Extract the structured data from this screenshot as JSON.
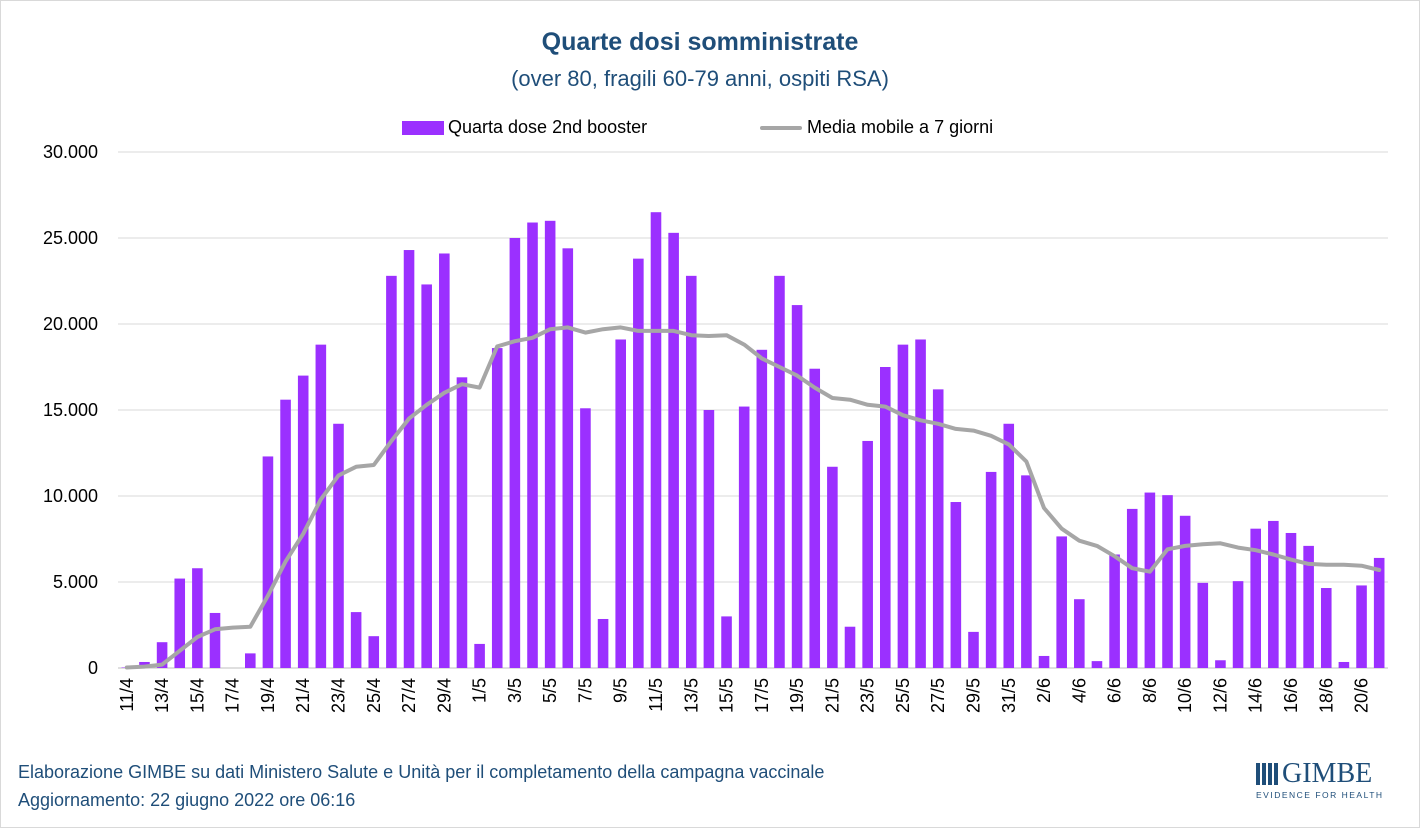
{
  "chart_data": {
    "type": "bar",
    "title": "Quarte dosi somministrate",
    "subtitle": "(over 80, fragili 60-79 anni, ospiti RSA)",
    "xlabel": "",
    "ylabel": "",
    "ylim": [
      0,
      30000
    ],
    "yticks": [
      {
        "value": 0,
        "label": "0"
      },
      {
        "value": 5000,
        "label": "5.000"
      },
      {
        "value": 10000,
        "label": "10.000"
      },
      {
        "value": 15000,
        "label": "15.000"
      },
      {
        "value": 20000,
        "label": "20.000"
      },
      {
        "value": 25000,
        "label": "25.000"
      },
      {
        "value": 30000,
        "label": "30.000"
      }
    ],
    "grid": true,
    "legend_position": "top-center",
    "categories": [
      "11/4",
      "12/4",
      "13/4",
      "14/4",
      "15/4",
      "16/4",
      "17/4",
      "18/4",
      "19/4",
      "20/4",
      "21/4",
      "22/4",
      "23/4",
      "24/4",
      "25/4",
      "26/4",
      "27/4",
      "28/4",
      "29/4",
      "30/4",
      "1/5",
      "2/5",
      "3/5",
      "4/5",
      "5/5",
      "6/5",
      "7/5",
      "8/5",
      "9/5",
      "10/5",
      "11/5",
      "12/5",
      "13/5",
      "14/5",
      "15/5",
      "16/5",
      "17/5",
      "18/5",
      "19/5",
      "20/5",
      "21/5",
      "22/5",
      "23/5",
      "24/5",
      "25/5",
      "26/5",
      "27/5",
      "28/5",
      "29/5",
      "30/5",
      "31/5",
      "1/6",
      "2/6",
      "3/6",
      "4/6",
      "5/6",
      "6/6",
      "7/6",
      "8/6",
      "9/6",
      "10/6",
      "11/6",
      "12/6",
      "13/6",
      "14/6",
      "15/6",
      "16/6",
      "17/6",
      "18/6",
      "19/6",
      "20/6",
      "21/6"
    ],
    "xtick_labels_shown": [
      "11/4",
      "13/4",
      "15/4",
      "17/4",
      "19/4",
      "21/4",
      "23/4",
      "25/4",
      "27/4",
      "29/4",
      "1/5",
      "3/5",
      "5/5",
      "7/5",
      "9/5",
      "11/5",
      "13/5",
      "15/5",
      "17/5",
      "19/5",
      "21/5",
      "23/5",
      "25/5",
      "27/5",
      "29/5",
      "31/5",
      "2/6",
      "4/6",
      "6/6",
      "8/6",
      "10/6",
      "12/6",
      "14/6",
      "16/6",
      "18/6",
      "20/6"
    ],
    "series": [
      {
        "name": "Quarta dose 2nd booster",
        "type": "bar",
        "color": "#9b30ff",
        "values": [
          30,
          350,
          1500,
          5200,
          5800,
          3200,
          0,
          850,
          12300,
          15600,
          17000,
          18800,
          14200,
          3250,
          1850,
          22800,
          24300,
          22300,
          24100,
          16900,
          1400,
          18600,
          25000,
          25900,
          26000,
          24400,
          15100,
          2850,
          19100,
          23800,
          26500,
          25300,
          22800,
          15000,
          3000,
          15200,
          18500,
          22800,
          21100,
          17400,
          11700,
          2400,
          13200,
          17500,
          18800,
          19100,
          16200,
          9650,
          2100,
          11400,
          14200,
          11200,
          700,
          7650,
          4000,
          400,
          6600,
          9250,
          10200,
          10050,
          8850,
          4950,
          450,
          5050,
          8100,
          8550,
          7850,
          7100,
          4650,
          350,
          4800,
          6400
        ]
      },
      {
        "name": "Media mobile a 7 giorni",
        "type": "line",
        "color": "#a6a6a6",
        "values": [
          30,
          80,
          200,
          1000,
          1800,
          2250,
          2350,
          2400,
          4200,
          6200,
          7800,
          9800,
          11200,
          11700,
          11800,
          13200,
          14500,
          15300,
          16000,
          16500,
          16300,
          18700,
          19000,
          19200,
          19700,
          19800,
          19500,
          19700,
          19800,
          19600,
          19600,
          19600,
          19350,
          19300,
          19350,
          18800,
          18000,
          17500,
          17000,
          16300,
          15700,
          15600,
          15300,
          15200,
          14700,
          14400,
          14200,
          13900,
          13800,
          13500,
          13000,
          12000,
          9300,
          8100,
          7400,
          7100,
          6500,
          5800,
          5600,
          6900,
          7100,
          7200,
          7250,
          7000,
          6850,
          6600,
          6300,
          6050,
          6000,
          6000,
          5950,
          5700
        ]
      }
    ]
  },
  "legend": {
    "bar_label": "Quarta dose 2nd booster",
    "line_label": "Media mobile a 7 giorni"
  },
  "footer": {
    "line1": "Elaborazione GIMBE su dati Ministero Salute e Unità per il completamento della campagna vaccinale",
    "line2": "Aggiornamento: 22 giugno 2022 ore 06:16"
  },
  "logo": {
    "name": "GIMBE",
    "tagline": "EVIDENCE FOR HEALTH"
  }
}
